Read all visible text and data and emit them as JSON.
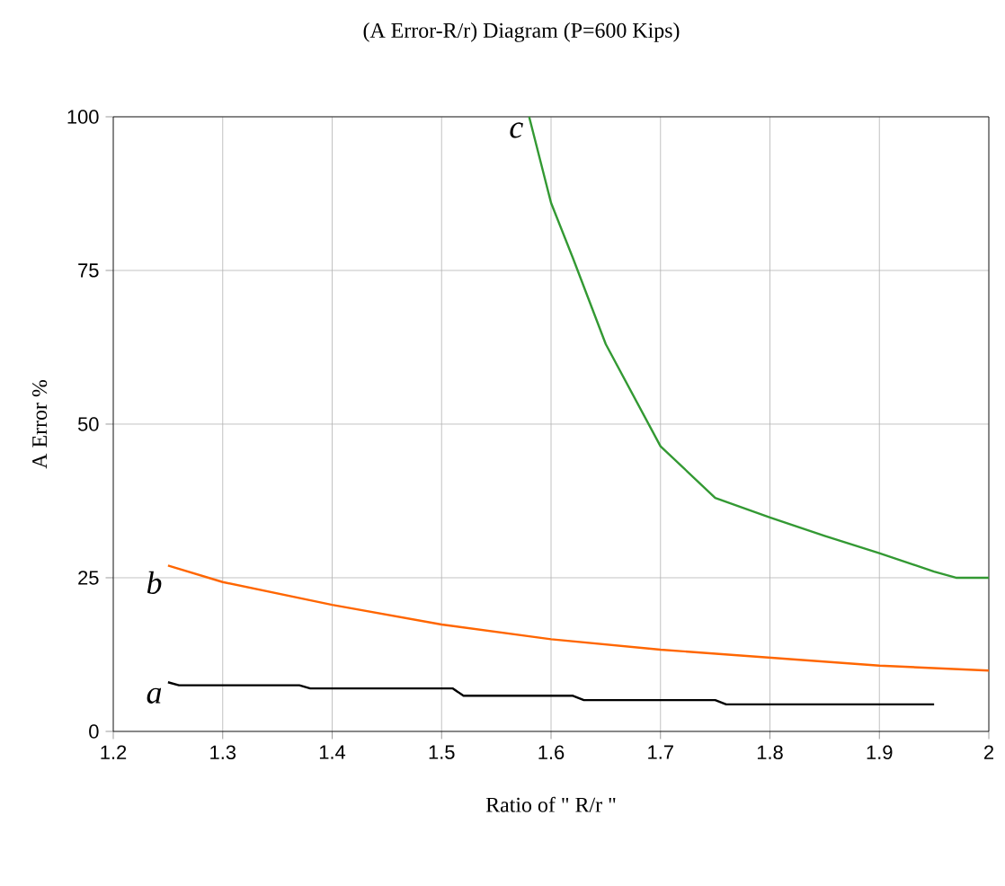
{
  "chart_data": {
    "type": "line",
    "title": "(A Error-R/r) Diagram (P=600 Kips)",
    "xlabel": "Ratio of \" R/r \"",
    "ylabel": "A Error %",
    "xlim": [
      1.2,
      2
    ],
    "xticks": [
      1.2,
      1.3,
      1.4,
      1.5,
      1.6,
      1.7,
      1.8,
      1.9,
      2
    ],
    "ylim": [
      0,
      100
    ],
    "yticks": [
      0,
      25,
      50,
      75,
      100
    ],
    "grid": true,
    "legend": false,
    "marker": "none",
    "line_style": "solid",
    "series": [
      {
        "name": "a",
        "color": "#000000",
        "x": [
          1.25,
          1.26,
          1.37,
          1.38,
          1.51,
          1.52,
          1.62,
          1.63,
          1.75,
          1.76,
          1.95
        ],
        "values": [
          8,
          7.5,
          7.5,
          7,
          7,
          5.8,
          5.8,
          5.1,
          5.1,
          4.4,
          4.4
        ]
      },
      {
        "name": "b",
        "color": "#ff6600",
        "x": [
          1.25,
          1.3,
          1.4,
          1.5,
          1.6,
          1.7,
          1.8,
          1.9,
          2
        ],
        "values": [
          27,
          24.3,
          20.6,
          17.4,
          15,
          13.3,
          12,
          10.7,
          9.9
        ]
      },
      {
        "name": "c",
        "color": "#339933",
        "x": [
          1.58,
          1.6,
          1.62,
          1.65,
          1.7,
          1.75,
          1.8,
          1.85,
          1.9,
          1.95,
          1.97,
          2
        ],
        "values": [
          100,
          86,
          77,
          63,
          46.4,
          38,
          34.8,
          31.8,
          29,
          26,
          25,
          25
        ]
      }
    ]
  }
}
